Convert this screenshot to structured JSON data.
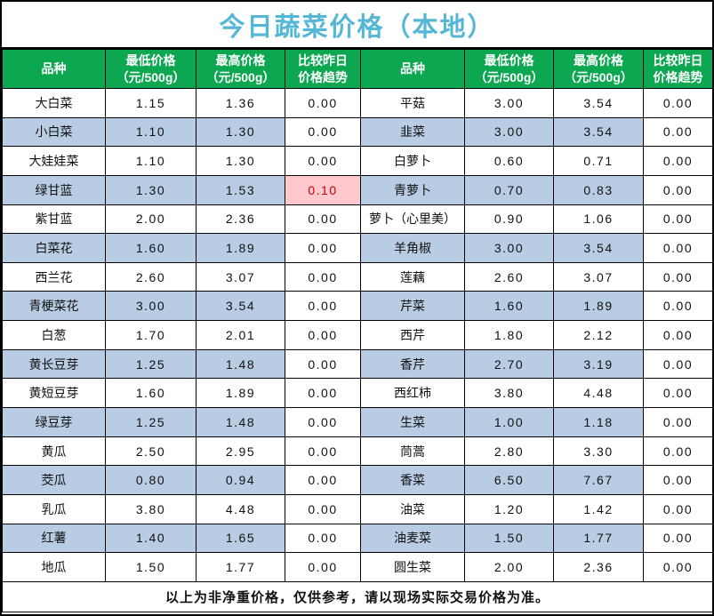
{
  "title": "今日蔬菜价格（本地）",
  "colors": {
    "title_blue": "#55B7D6",
    "header_green": "#0CA750",
    "row_blue": "#B8CCE4",
    "highlight_pink": "#FFC7CE",
    "highlight_red": "#C00000"
  },
  "header": {
    "variety": "品种",
    "min1": "最低价格",
    "min2": "（元/500g）",
    "max1": "最高价格",
    "max2": "（元/500g）",
    "trend1": "比较昨日",
    "trend2": "价格趋势"
  },
  "rows": [
    {
      "left": {
        "name": "大白菜",
        "min": "1.15",
        "max": "1.36",
        "trend": "0.00"
      },
      "right": {
        "name": "平菇",
        "min": "3.00",
        "max": "3.54",
        "trend": "0.00"
      }
    },
    {
      "left": {
        "name": "小白菜",
        "min": "1.10",
        "max": "1.30",
        "trend": "0.00"
      },
      "right": {
        "name": "韭菜",
        "min": "3.00",
        "max": "3.54",
        "trend": "0.00"
      }
    },
    {
      "left": {
        "name": "大娃娃菜",
        "min": "1.10",
        "max": "1.30",
        "trend": "0.00"
      },
      "right": {
        "name": "白萝卜",
        "min": "0.60",
        "max": "0.71",
        "trend": "0.00"
      }
    },
    {
      "left": {
        "name": "绿甘蓝",
        "min": "1.30",
        "max": "1.53",
        "trend": "0.10",
        "highlight": true
      },
      "right": {
        "name": "青萝卜",
        "min": "0.70",
        "max": "0.83",
        "trend": "0.00"
      }
    },
    {
      "left": {
        "name": "紫甘蓝",
        "min": "2.00",
        "max": "2.36",
        "trend": "0.00"
      },
      "right": {
        "name": "萝卜（心里美）",
        "min": "0.90",
        "max": "1.06",
        "trend": "0.00"
      }
    },
    {
      "left": {
        "name": "白菜花",
        "min": "1.60",
        "max": "1.89",
        "trend": "0.00"
      },
      "right": {
        "name": "羊角椒",
        "min": "3.00",
        "max": "3.54",
        "trend": "0.00"
      }
    },
    {
      "left": {
        "name": "西兰花",
        "min": "2.60",
        "max": "3.07",
        "trend": "0.00"
      },
      "right": {
        "name": "莲藕",
        "min": "2.60",
        "max": "3.07",
        "trend": "0.00"
      }
    },
    {
      "left": {
        "name": "青梗菜花",
        "min": "3.00",
        "max": "3.54",
        "trend": "0.00"
      },
      "right": {
        "name": "芹菜",
        "min": "1.60",
        "max": "1.89",
        "trend": "0.00"
      }
    },
    {
      "left": {
        "name": "白葱",
        "min": "1.70",
        "max": "2.01",
        "trend": "0.00"
      },
      "right": {
        "name": "西芹",
        "min": "1.80",
        "max": "2.12",
        "trend": "0.00"
      }
    },
    {
      "left": {
        "name": "黄长豆芽",
        "min": "1.25",
        "max": "1.48",
        "trend": "0.00"
      },
      "right": {
        "name": "香芹",
        "min": "2.70",
        "max": "3.19",
        "trend": "0.00"
      }
    },
    {
      "left": {
        "name": "黄短豆芽",
        "min": "1.60",
        "max": "1.89",
        "trend": "0.00"
      },
      "right": {
        "name": "西红柿",
        "min": "3.80",
        "max": "4.48",
        "trend": "0.00"
      }
    },
    {
      "left": {
        "name": "绿豆芽",
        "min": "1.25",
        "max": "1.48",
        "trend": "0.00"
      },
      "right": {
        "name": "生菜",
        "min": "1.00",
        "max": "1.18",
        "trend": "0.00"
      }
    },
    {
      "left": {
        "name": "黄瓜",
        "min": "2.50",
        "max": "2.95",
        "trend": "0.00"
      },
      "right": {
        "name": "茼蒿",
        "min": "2.80",
        "max": "3.30",
        "trend": "0.00"
      }
    },
    {
      "left": {
        "name": "茭瓜",
        "min": "0.80",
        "max": "0.94",
        "trend": "0.00"
      },
      "right": {
        "name": "香菜",
        "min": "6.50",
        "max": "7.67",
        "trend": "0.00"
      }
    },
    {
      "left": {
        "name": "乳瓜",
        "min": "3.80",
        "max": "4.48",
        "trend": "0.00"
      },
      "right": {
        "name": "油菜",
        "min": "1.20",
        "max": "1.42",
        "trend": "0.00"
      }
    },
    {
      "left": {
        "name": "红薯",
        "min": "1.40",
        "max": "1.65",
        "trend": "0.00"
      },
      "right": {
        "name": "油麦菜",
        "min": "1.50",
        "max": "1.77",
        "trend": "0.00"
      }
    },
    {
      "left": {
        "name": "地瓜",
        "min": "1.50",
        "max": "1.77",
        "trend": "0.00"
      },
      "right": {
        "name": "圆生菜",
        "min": "2.00",
        "max": "2.36",
        "trend": "0.00"
      }
    }
  ],
  "footer": "以上为非净重价格，仅供参考，请以现场实际交易价格为准。"
}
